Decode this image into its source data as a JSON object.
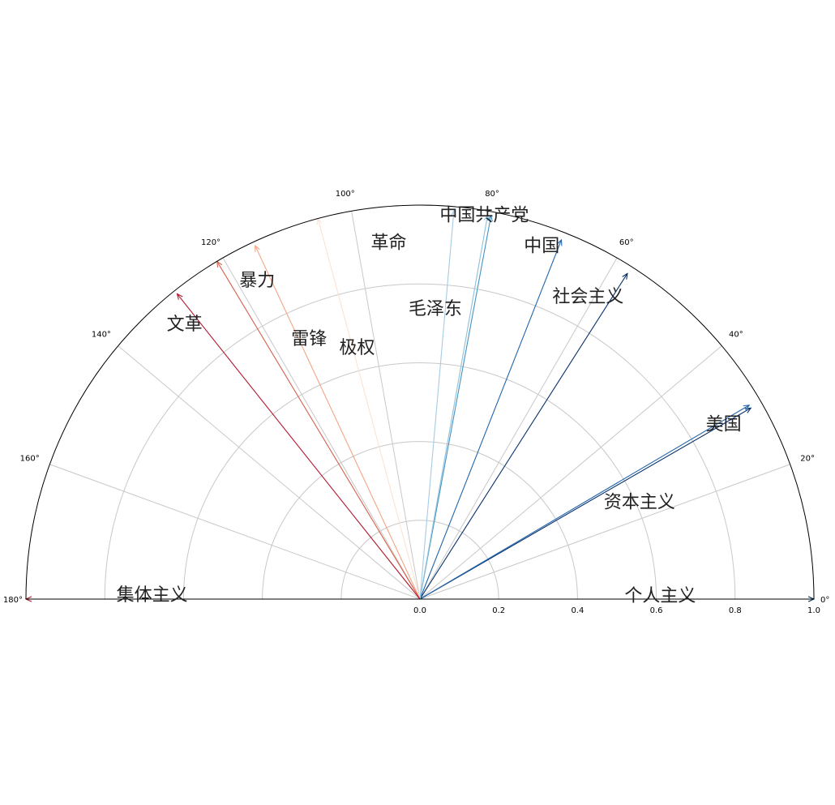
{
  "chart_data": {
    "type": "polar-semicircle-vectors",
    "title": "",
    "grid": true,
    "theta_range_deg": [
      0,
      180
    ],
    "r_range": [
      0,
      1.0
    ],
    "theta_ticks": [
      "0°",
      "20°",
      "40°",
      "60°",
      "80°",
      "100°",
      "120°",
      "140°",
      "160°",
      "180°"
    ],
    "theta_tick_values": [
      0,
      20,
      40,
      60,
      80,
      100,
      120,
      140,
      160,
      180
    ],
    "r_ticks": [
      "0.0",
      "0.2",
      "0.4",
      "0.6",
      "0.8",
      "1.0"
    ],
    "r_tick_values": [
      0,
      0.2,
      0.4,
      0.6,
      0.8,
      1.0
    ],
    "vectors": [
      {
        "angle": 0,
        "r": 1.0,
        "color": "#053061"
      },
      {
        "angle": 180,
        "r": 1.0,
        "color": "#b2182b"
      },
      {
        "angle": 30,
        "r": 0.97,
        "color": "#08306b"
      },
      {
        "angle": 30.5,
        "r": 0.97,
        "color": "#2166ac"
      },
      {
        "angle": 57.5,
        "r": 0.98,
        "color": "#08306b"
      },
      {
        "angle": 68.5,
        "r": 0.98,
        "color": "#2166ac"
      },
      {
        "angle": 79.5,
        "r": 0.99,
        "color": "#4393c3"
      },
      {
        "angle": 80,
        "r": 0.99,
        "color": "#92c5de"
      },
      {
        "angle": 85,
        "r": 0.99,
        "color": "#a6cbe3"
      },
      {
        "angle": 105,
        "r": 1.0,
        "color": "#fbe3d4"
      },
      {
        "angle": 115,
        "r": 0.99,
        "color": "#f4a582"
      },
      {
        "angle": 121,
        "r": 1.0,
        "color": "#d6604d"
      },
      {
        "angle": 128.5,
        "r": 0.99,
        "color": "#b2182b"
      }
    ],
    "words": [
      {
        "text": "中国共产党",
        "angle": 80.5,
        "r": 0.99
      },
      {
        "text": "中国",
        "angle": 71.0,
        "r": 0.95
      },
      {
        "text": "革命",
        "angle": 95.0,
        "r": 0.91
      },
      {
        "text": "暴力",
        "angle": 117.0,
        "r": 0.91
      },
      {
        "text": "文革",
        "angle": 130.5,
        "r": 0.92
      },
      {
        "text": "社会主义",
        "angle": 61.0,
        "r": 0.88
      },
      {
        "text": "毛泽东",
        "angle": 87.0,
        "r": 0.74
      },
      {
        "text": "极权",
        "angle": 104.0,
        "r": 0.66
      },
      {
        "text": "雷锋",
        "angle": 113.0,
        "r": 0.72
      },
      {
        "text": "美国",
        "angle": 30.0,
        "r": 0.89
      },
      {
        "text": "资本主义",
        "angle": 24.0,
        "r": 0.61
      },
      {
        "text": "集体主义",
        "angle": 179.0,
        "r": 0.68
      },
      {
        "text": "个人主义",
        "angle": 1.0,
        "r": 0.61
      }
    ]
  }
}
